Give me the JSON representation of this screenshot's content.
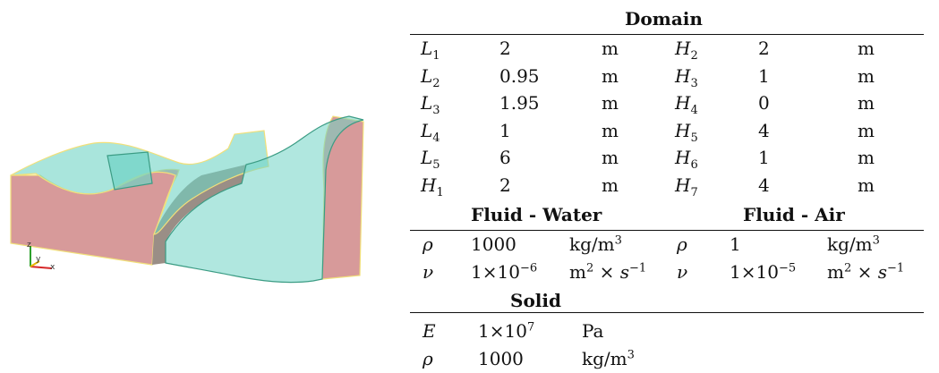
{
  "figure": {
    "axes_triad": {
      "z": "z",
      "y": "y",
      "x": "x"
    },
    "colors": {
      "solid": "#d79a9a",
      "water": "#6fd3c5",
      "interface": "#f1e07a",
      "edge": "#3b9c84"
    }
  },
  "table": {
    "domain_header": "Domain",
    "domain_rows": [
      {
        "sym": "L",
        "sub": "1",
        "val": "2",
        "unit": "m",
        "sym2": "H",
        "sub2": "2",
        "val2": "2",
        "unit2": "m"
      },
      {
        "sym": "L",
        "sub": "2",
        "val": "0.95",
        "unit": "m",
        "sym2": "H",
        "sub2": "3",
        "val2": "1",
        "unit2": "m"
      },
      {
        "sym": "L",
        "sub": "3",
        "val": "1.95",
        "unit": "m",
        "sym2": "H",
        "sub2": "4",
        "val2": "0",
        "unit2": "m"
      },
      {
        "sym": "L",
        "sub": "4",
        "val": "1",
        "unit": "m",
        "sym2": "H",
        "sub2": "5",
        "val2": "4",
        "unit2": "m"
      },
      {
        "sym": "L",
        "sub": "5",
        "val": "6",
        "unit": "m",
        "sym2": "H",
        "sub2": "6",
        "val2": "1",
        "unit2": "m"
      },
      {
        "sym": "H",
        "sub": "1",
        "val": "2",
        "unit": "m",
        "sym2": "H",
        "sub2": "7",
        "val2": "4",
        "unit2": "m"
      }
    ],
    "water_header": "Fluid - Water",
    "air_header": "Fluid - Air",
    "fluid_rows": [
      {
        "sym": "ρ",
        "val_base": "1000",
        "val_exp": "",
        "unit_base": "kg/m",
        "unit_exp": "3",
        "unit_tail": "",
        "unit_tail_exp": "",
        "sym2": "ρ",
        "val2_base": "1",
        "val2_exp": "",
        "unit2_base": "kg/m",
        "unit2_exp": "3",
        "unit2_tail": "",
        "unit2_tail_exp": ""
      },
      {
        "sym": "ν",
        "val_base": "1×10",
        "val_exp": "−6",
        "unit_base": "m",
        "unit_exp": "2",
        "unit_tail": " × s",
        "unit_tail_exp": "−1",
        "sym2": "ν",
        "val2_base": "1×10",
        "val2_exp": "−5",
        "unit2_base": "m",
        "unit2_exp": "2",
        "unit2_tail": " × s",
        "unit2_tail_exp": "−1"
      }
    ],
    "solid_header": "Solid",
    "solid_rows": [
      {
        "sym": "E",
        "val_base": "1×10",
        "val_exp": "7",
        "unit_base": "Pa",
        "unit_exp": ""
      },
      {
        "sym": "ρ",
        "val_base": "1000",
        "val_exp": "",
        "unit_base": "kg/m",
        "unit_exp": "3"
      }
    ]
  }
}
